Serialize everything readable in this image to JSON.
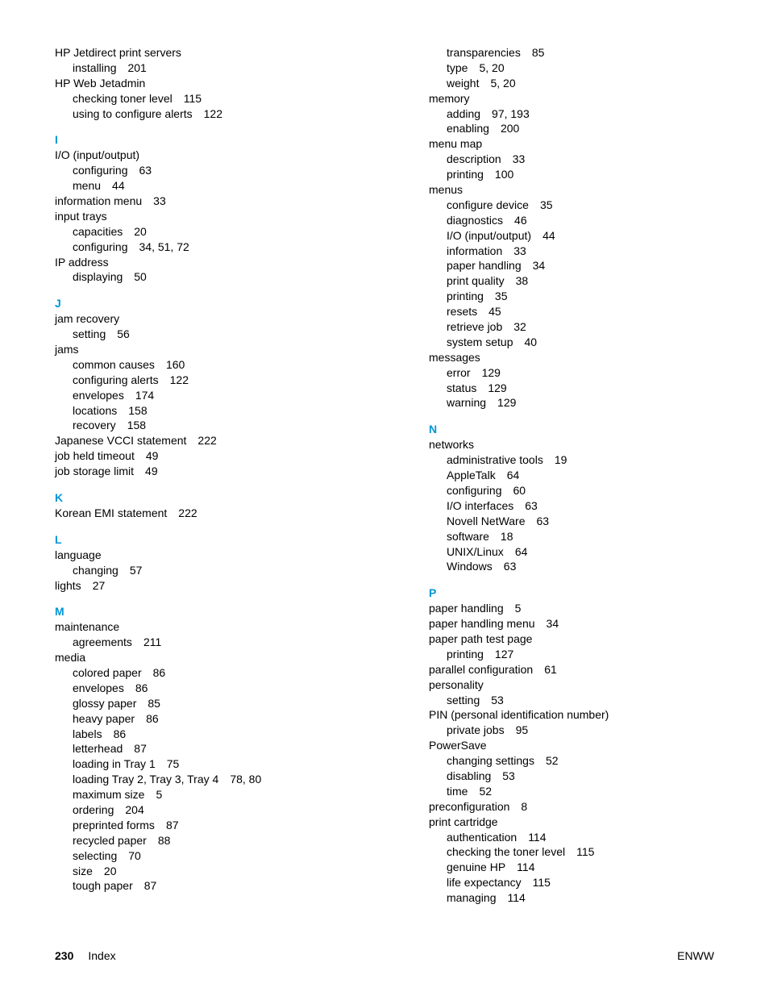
{
  "colors": {
    "heading": "#0096d6",
    "text": "#000000",
    "background": "#ffffff"
  },
  "font": {
    "family": "Arial",
    "size_body": 14,
    "size_heading": 14
  },
  "footer": {
    "page_number": "230",
    "section": "Index",
    "right": "ENWW"
  },
  "left_column": [
    {
      "type": "top",
      "text": "HP Jetdirect print servers"
    },
    {
      "type": "sub",
      "text": "installing",
      "pages": "201"
    },
    {
      "type": "top",
      "text": "HP Web Jetadmin"
    },
    {
      "type": "sub",
      "text": "checking toner level",
      "pages": "115"
    },
    {
      "type": "sub",
      "text": "using to configure alerts",
      "pages": "122"
    },
    {
      "type": "letter",
      "text": "I"
    },
    {
      "type": "top",
      "text": "I/O (input/output)"
    },
    {
      "type": "sub",
      "text": "configuring",
      "pages": "63"
    },
    {
      "type": "sub",
      "text": "menu",
      "pages": "44"
    },
    {
      "type": "top",
      "text": "information menu",
      "pages": "33"
    },
    {
      "type": "top",
      "text": "input trays"
    },
    {
      "type": "sub",
      "text": "capacities",
      "pages": "20"
    },
    {
      "type": "sub",
      "text": "configuring",
      "pages": "34, 51, 72"
    },
    {
      "type": "top",
      "text": "IP address"
    },
    {
      "type": "sub",
      "text": "displaying",
      "pages": "50"
    },
    {
      "type": "letter",
      "text": "J"
    },
    {
      "type": "top",
      "text": "jam recovery"
    },
    {
      "type": "sub",
      "text": "setting",
      "pages": "56"
    },
    {
      "type": "top",
      "text": "jams"
    },
    {
      "type": "sub",
      "text": "common causes",
      "pages": "160"
    },
    {
      "type": "sub",
      "text": "configuring alerts",
      "pages": "122"
    },
    {
      "type": "sub",
      "text": "envelopes",
      "pages": "174"
    },
    {
      "type": "sub",
      "text": "locations",
      "pages": "158"
    },
    {
      "type": "sub",
      "text": "recovery",
      "pages": "158"
    },
    {
      "type": "top",
      "text": "Japanese VCCI statement",
      "pages": "222"
    },
    {
      "type": "top",
      "text": "job held timeout",
      "pages": "49"
    },
    {
      "type": "top",
      "text": "job storage limit",
      "pages": "49"
    },
    {
      "type": "letter",
      "text": "K"
    },
    {
      "type": "top",
      "text": "Korean EMI statement",
      "pages": "222"
    },
    {
      "type": "letter",
      "text": "L"
    },
    {
      "type": "top",
      "text": "language"
    },
    {
      "type": "sub",
      "text": "changing",
      "pages": "57"
    },
    {
      "type": "top",
      "text": "lights",
      "pages": "27"
    },
    {
      "type": "letter",
      "text": "M"
    },
    {
      "type": "top",
      "text": "maintenance"
    },
    {
      "type": "sub",
      "text": "agreements",
      "pages": "211"
    },
    {
      "type": "top",
      "text": "media"
    },
    {
      "type": "sub",
      "text": "colored paper",
      "pages": "86"
    },
    {
      "type": "sub",
      "text": "envelopes",
      "pages": "86"
    },
    {
      "type": "sub",
      "text": "glossy paper",
      "pages": "85"
    },
    {
      "type": "sub",
      "text": "heavy paper",
      "pages": "86"
    },
    {
      "type": "sub",
      "text": "labels",
      "pages": "86"
    },
    {
      "type": "sub",
      "text": "letterhead",
      "pages": "87"
    },
    {
      "type": "sub",
      "text": "loading in Tray 1",
      "pages": "75"
    },
    {
      "type": "sub",
      "text": "loading Tray 2, Tray 3, Tray 4",
      "pages": "78, 80"
    },
    {
      "type": "sub",
      "text": "maximum size",
      "pages": "5"
    },
    {
      "type": "sub",
      "text": "ordering",
      "pages": "204"
    },
    {
      "type": "sub",
      "text": "preprinted forms",
      "pages": "87"
    },
    {
      "type": "sub",
      "text": "recycled paper",
      "pages": "88"
    },
    {
      "type": "sub",
      "text": "selecting",
      "pages": "70"
    },
    {
      "type": "sub",
      "text": "size",
      "pages": "20"
    },
    {
      "type": "sub",
      "text": "tough paper",
      "pages": "87"
    }
  ],
  "right_column": [
    {
      "type": "sub",
      "text": "transparencies",
      "pages": "85"
    },
    {
      "type": "sub",
      "text": "type",
      "pages": "5, 20"
    },
    {
      "type": "sub",
      "text": "weight",
      "pages": "5, 20"
    },
    {
      "type": "top",
      "text": "memory"
    },
    {
      "type": "sub",
      "text": "adding",
      "pages": "97, 193"
    },
    {
      "type": "sub",
      "text": "enabling",
      "pages": "200"
    },
    {
      "type": "top",
      "text": "menu map"
    },
    {
      "type": "sub",
      "text": "description",
      "pages": "33"
    },
    {
      "type": "sub",
      "text": "printing",
      "pages": "100"
    },
    {
      "type": "top",
      "text": "menus"
    },
    {
      "type": "sub",
      "text": "configure device",
      "pages": "35"
    },
    {
      "type": "sub",
      "text": "diagnostics",
      "pages": "46"
    },
    {
      "type": "sub",
      "text": "I/O (input/output)",
      "pages": "44"
    },
    {
      "type": "sub",
      "text": "information",
      "pages": "33"
    },
    {
      "type": "sub",
      "text": "paper handling",
      "pages": "34"
    },
    {
      "type": "sub",
      "text": "print quality",
      "pages": "38"
    },
    {
      "type": "sub",
      "text": "printing",
      "pages": "35"
    },
    {
      "type": "sub",
      "text": "resets",
      "pages": "45"
    },
    {
      "type": "sub",
      "text": "retrieve job",
      "pages": "32"
    },
    {
      "type": "sub",
      "text": "system setup",
      "pages": "40"
    },
    {
      "type": "top",
      "text": "messages"
    },
    {
      "type": "sub",
      "text": "error",
      "pages": "129"
    },
    {
      "type": "sub",
      "text": "status",
      "pages": "129"
    },
    {
      "type": "sub",
      "text": "warning",
      "pages": "129"
    },
    {
      "type": "letter",
      "text": "N"
    },
    {
      "type": "top",
      "text": "networks"
    },
    {
      "type": "sub",
      "text": "administrative tools",
      "pages": "19"
    },
    {
      "type": "sub",
      "text": "AppleTalk",
      "pages": "64"
    },
    {
      "type": "sub",
      "text": "configuring",
      "pages": "60"
    },
    {
      "type": "sub",
      "text": "I/O interfaces",
      "pages": "63"
    },
    {
      "type": "sub",
      "text": "Novell NetWare",
      "pages": "63"
    },
    {
      "type": "sub",
      "text": "software",
      "pages": "18"
    },
    {
      "type": "sub",
      "text": "UNIX/Linux",
      "pages": "64"
    },
    {
      "type": "sub",
      "text": "Windows",
      "pages": "63"
    },
    {
      "type": "letter",
      "text": "P"
    },
    {
      "type": "top",
      "text": "paper handling",
      "pages": "5"
    },
    {
      "type": "top",
      "text": "paper handling menu",
      "pages": "34"
    },
    {
      "type": "top",
      "text": "paper path test page"
    },
    {
      "type": "sub",
      "text": "printing",
      "pages": "127"
    },
    {
      "type": "top",
      "text": "parallel configuration",
      "pages": "61"
    },
    {
      "type": "top",
      "text": "personality"
    },
    {
      "type": "sub",
      "text": "setting",
      "pages": "53"
    },
    {
      "type": "top",
      "text": "PIN (personal identification number)"
    },
    {
      "type": "sub",
      "text": "private jobs",
      "pages": "95"
    },
    {
      "type": "top",
      "text": "PowerSave"
    },
    {
      "type": "sub",
      "text": "changing settings",
      "pages": "52"
    },
    {
      "type": "sub",
      "text": "disabling",
      "pages": "53"
    },
    {
      "type": "sub",
      "text": "time",
      "pages": "52"
    },
    {
      "type": "top",
      "text": "preconfiguration",
      "pages": "8"
    },
    {
      "type": "top",
      "text": "print cartridge"
    },
    {
      "type": "sub",
      "text": "authentication",
      "pages": "114"
    },
    {
      "type": "sub",
      "text": "checking the toner level",
      "pages": "115"
    },
    {
      "type": "sub",
      "text": "genuine HP",
      "pages": "114"
    },
    {
      "type": "sub",
      "text": "life expectancy",
      "pages": "115"
    },
    {
      "type": "sub",
      "text": "managing",
      "pages": "114"
    }
  ]
}
